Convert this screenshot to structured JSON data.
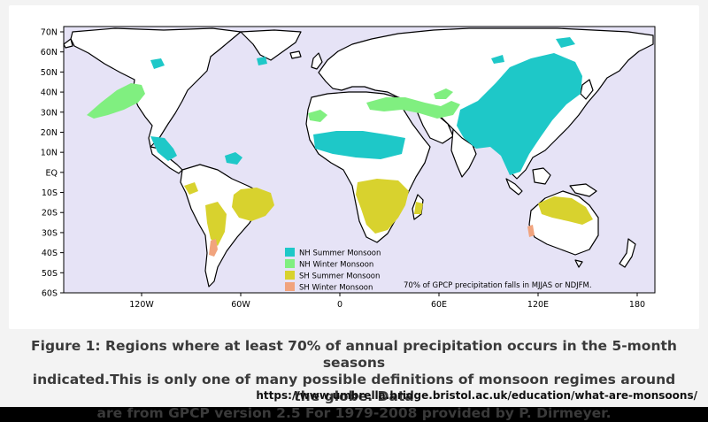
{
  "map": {
    "lat_ticks": [
      "70N",
      "60N",
      "50N",
      "40N",
      "30N",
      "20N",
      "10N",
      "EQ",
      "10S",
      "20S",
      "30S",
      "40S",
      "50S",
      "60S"
    ],
    "lon_ticks": [
      "120W",
      "60W",
      "0",
      "60E",
      "120E",
      "180"
    ],
    "legend": [
      {
        "label": "NH Summer Monsoon",
        "color": "#1ec8c8"
      },
      {
        "label": "NH Winter Monsoon",
        "color": "#80ef80"
      },
      {
        "label": "SH Summer Monsoon",
        "color": "#d8d22e"
      },
      {
        "label": "SH Winter Monsoon",
        "color": "#f1a47e"
      }
    ],
    "note": "70% of GPCP precipitation falls in MJJAS or NDJFM.",
    "ocean_color": "#e6e3f6",
    "land_color": "#ffffff"
  },
  "caption": {
    "line1": "Figure 1: Regions where at least 70% of annual precipitation occurs in the 5-month seasons",
    "line2": "indicated.This is only one of many possible definitions of monsoon regimes around the globe. Data",
    "line3": "are from GPCP version 2.5 For 1979-2008 provided by P. Dirmeyer.",
    "source": "https://www.umbrella.bridge.bristol.ac.uk/education/what-are-monsoons/"
  }
}
